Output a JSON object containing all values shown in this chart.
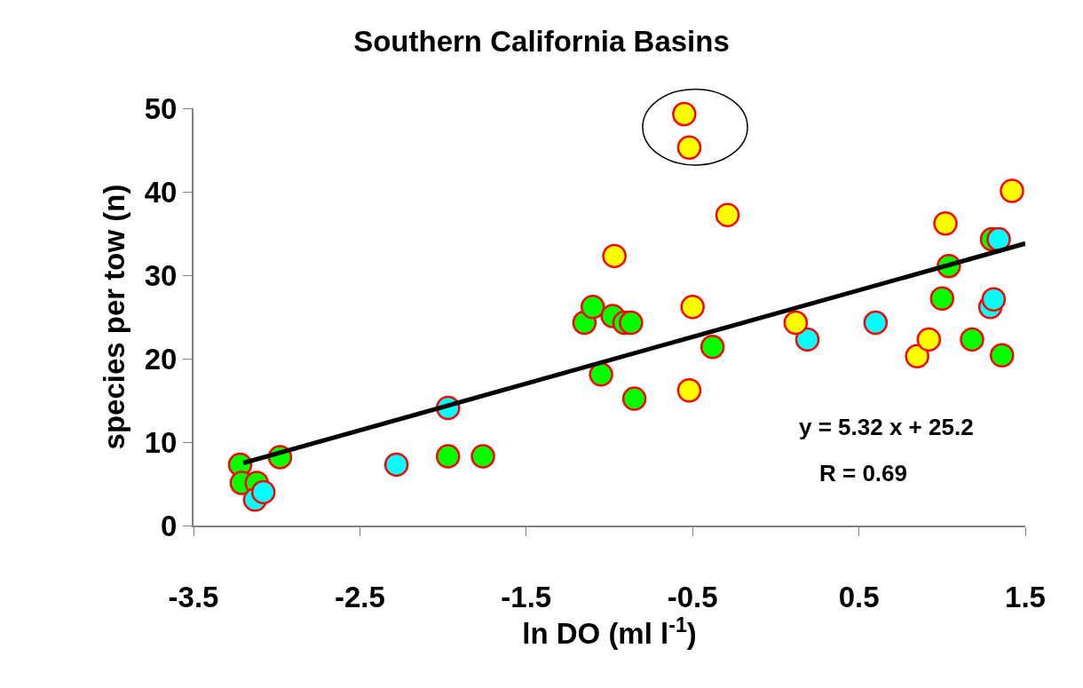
{
  "chart_data": {
    "type": "scatter",
    "title": "Southern California Basins",
    "xlabel": "ln DO (ml l$^{-1}$)",
    "ylabel": "species per tow (n)",
    "xlim": [
      -3.5,
      1.5
    ],
    "xticks": [
      -3.5,
      -2.5,
      -1.5,
      -0.5,
      0.5,
      1.5
    ],
    "ylim": [
      0,
      50
    ],
    "yticks": [
      0,
      10,
      20,
      30,
      40,
      50
    ],
    "marker": "circle",
    "series": [
      {
        "color": "#00ff00",
        "x": [
          -3.22,
          -3.21,
          -3.12,
          -2.98,
          -1.97,
          -1.76,
          -1.15,
          -1.1,
          -1.05,
          -0.98,
          -0.91,
          -0.87,
          -0.85,
          -0.38,
          1.0,
          1.04,
          1.18,
          1.36,
          1.3
        ],
        "values": [
          7.3,
          5.1,
          5.1,
          8.2,
          8.3,
          8.3,
          24.3,
          26.2,
          18.1,
          25.1,
          24.3,
          24.3,
          15.2,
          21.4,
          27.2,
          31.1,
          22.3,
          20.4,
          34.3
        ]
      },
      {
        "color": "#00ffff",
        "x": [
          -1.97,
          -2.28,
          -3.13,
          -3.08,
          0.19,
          0.6,
          1.29,
          1.31,
          1.34
        ],
        "values": [
          14.1,
          7.3,
          3.1,
          4.0,
          22.3,
          24.3,
          26.2,
          27.1,
          34.3
        ]
      },
      {
        "color": "#ffff00",
        "x": [
          -0.55,
          -0.52,
          -0.29,
          -0.97,
          -0.5,
          -0.52,
          0.12,
          1.02,
          1.42,
          0.85,
          0.92
        ],
        "values": [
          49.3,
          45.3,
          37.2,
          32.3,
          26.2,
          16.2,
          24.3,
          36.2,
          40.1,
          20.3,
          22.3
        ]
      },
      {
        "type": "line",
        "color": "#000000",
        "marker": "none",
        "line_style": "solid",
        "x": [
          -3.2,
          1.5
        ],
        "values": [
          7.5,
          33.8
        ]
      }
    ],
    "annotations": [
      "y = 5.32 x + 25.2",
      "R = 0.69"
    ]
  }
}
